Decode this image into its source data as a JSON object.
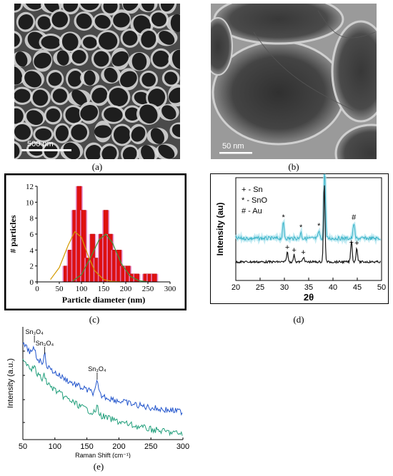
{
  "captions": [
    "(a)",
    "(b)",
    "(c)",
    "(d)",
    "(e)"
  ],
  "panel_a": {
    "scalebar_label": "500 nm"
  },
  "panel_b": {
    "scalebar_label": "50 nm"
  },
  "chart_data": [
    {
      "panel": "c",
      "type": "bar",
      "xlabel": "Particle diameter (nm)",
      "ylabel": "# particles",
      "xlim": [
        0,
        300
      ],
      "ylim": [
        0,
        12
      ],
      "xticks": [
        0,
        50,
        100,
        150,
        200,
        250,
        300
      ],
      "yticks": [
        0,
        2,
        4,
        6,
        8,
        10,
        12
      ],
      "bins_centers": [
        55,
        65,
        75,
        85,
        95,
        105,
        115,
        125,
        135,
        145,
        155,
        165,
        175,
        185,
        195,
        205,
        215,
        225,
        235,
        245,
        255,
        265
      ],
      "values": [
        0,
        2,
        4,
        9,
        12,
        9,
        3,
        6,
        3,
        6,
        9,
        6,
        4,
        4,
        2,
        2,
        1,
        1,
        0,
        1,
        1,
        1
      ],
      "fit_curves": [
        {
          "x": [
            30,
            50,
            70,
            85,
            100,
            115,
            130,
            150,
            170,
            190
          ],
          "y": [
            0.3,
            1.8,
            4.6,
            6.3,
            5.6,
            3.3,
            1.4,
            0.3,
            0.05,
            0
          ]
        },
        {
          "x": [
            80,
            100,
            120,
            140,
            155,
            170,
            190,
            210,
            230,
            250
          ],
          "y": [
            0.1,
            0.9,
            3.0,
            5.3,
            6.0,
            4.9,
            2.3,
            0.7,
            0.15,
            0
          ]
        }
      ]
    },
    {
      "panel": "d",
      "type": "line",
      "xlabel": "2θ",
      "ylabel": "Intensity (au)",
      "xlim": [
        20,
        50
      ],
      "xticks": [
        20,
        25,
        30,
        35,
        40,
        45,
        50
      ],
      "legend": [
        "+ - Sn",
        "* - SnO",
        "# - Au"
      ],
      "series": [
        {
          "color": "#3bb3c8",
          "peaks": [
            [
              29.8,
              "*"
            ],
            [
              33.4,
              "*"
            ],
            [
              37.1,
              "*"
            ],
            [
              38.3,
              "#"
            ],
            [
              44.3,
              "#"
            ]
          ]
        },
        {
          "color": "#1a1a1a",
          "peaks": [
            [
              30.6,
              "+"
            ],
            [
              32.0,
              "+"
            ],
            [
              33.9,
              "+"
            ],
            [
              38.2,
              ""
            ],
            [
              43.8,
              "+"
            ],
            [
              44.9,
              "+"
            ]
          ]
        }
      ]
    },
    {
      "panel": "e",
      "type": "line",
      "xlabel": "Raman Shift (cm⁻¹)",
      "ylabel": "Intensity (a.u.)",
      "xlim": [
        50,
        300
      ],
      "xticks": [
        50,
        100,
        150,
        200,
        250,
        300
      ],
      "annotations": [
        {
          "x": 68,
          "label": "Sn₃O₄"
        },
        {
          "x": 84,
          "label": "Sn₃O₄"
        },
        {
          "x": 166,
          "label": "Sn₃O₄"
        }
      ],
      "series": [
        {
          "color": "#2255cc"
        },
        {
          "color": "#1f9e7a"
        }
      ]
    }
  ]
}
